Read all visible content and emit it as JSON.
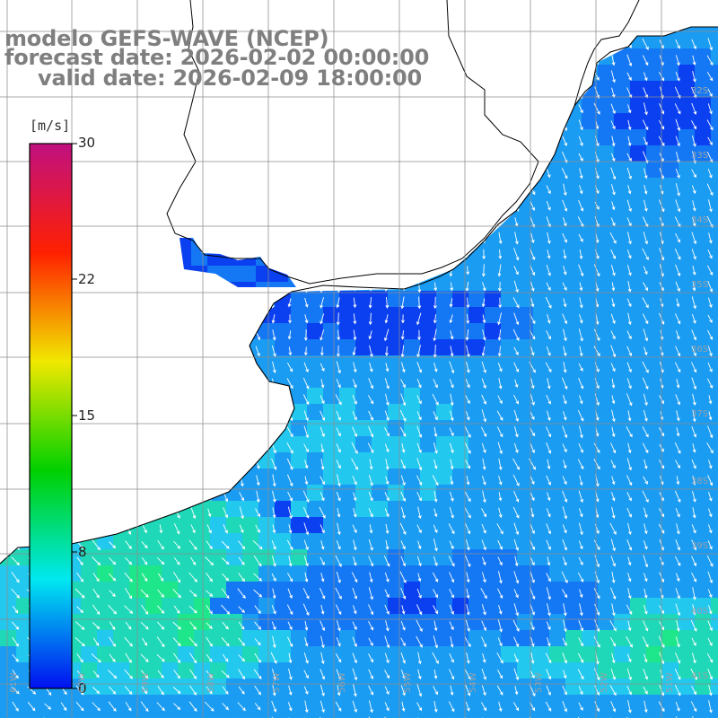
{
  "title": {
    "line1": "modelo GEFS-WAVE (NCEP)",
    "line2": "forecast date: 2026-02-02 00:00:00",
    "line3": "valid date: 2026-02-09 18:00:00"
  },
  "colorbar": {
    "unit": "[m/s]",
    "ticks": [
      "30",
      "22",
      "15",
      "8",
      "0"
    ],
    "min": 0,
    "max": 30,
    "stops": [
      "#0010f0",
      "#00e8f0",
      "#00d000",
      "#f0e800",
      "#ff2000",
      "#c01080"
    ]
  },
  "grid": {
    "lat_labels": [
      "32S",
      "33S",
      "34S",
      "35S",
      "36S",
      "37S",
      "38S",
      "39S",
      "40S",
      "41S"
    ],
    "lon_labels": [
      "61W",
      "60W",
      "59W",
      "58W",
      "57W",
      "56W",
      "55W",
      "54W",
      "53W",
      "52W",
      "51W"
    ]
  },
  "colors": {
    "land": "#ffffff",
    "coast": "#000000",
    "grid_line": "#8c8c8c",
    "arrow": "#ffffff",
    "deep_blue": "#0a40f0",
    "mid_blue": "#1478f5",
    "cyan": "#22c8ee",
    "green": "#1ee68a"
  }
}
